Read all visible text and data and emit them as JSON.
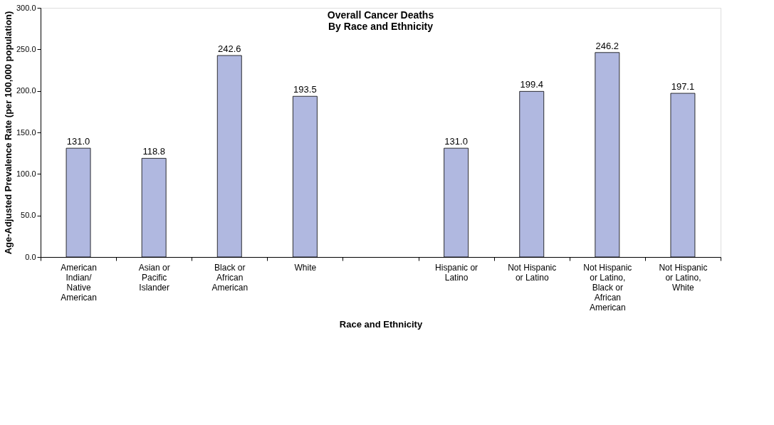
{
  "chart_data": {
    "type": "bar",
    "title": "Overall Cancer Deaths\nBy Race and Ethnicity",
    "xlabel": "Race and Ethnicity",
    "ylabel": "Age-Adjusted Prevalence Rate (per 100,000 population)",
    "categories": [
      "American Indian/Native American",
      "Asian or Pacific Islander",
      "Black or African American",
      "White",
      null,
      "Hispanic or Latino",
      "Not Hispanic or Latino",
      "Not Hispanic or Latino, Black or African American",
      "Not Hispanic or Latino, White"
    ],
    "values": [
      131.0,
      118.8,
      242.6,
      193.5,
      null,
      131.0,
      199.4,
      246.2,
      197.1
    ],
    "color": "#b0b8e0",
    "ylim": [
      0,
      300
    ],
    "yticks": [
      {
        "value": 0,
        "label": "0.0"
      },
      {
        "value": 50,
        "label": "50.0"
      },
      {
        "value": 100,
        "label": "100.0"
      },
      {
        "value": 150,
        "label": "150.0"
      },
      {
        "value": 200,
        "label": "200.0"
      },
      {
        "value": 250,
        "label": "250.0"
      },
      {
        "value": 300,
        "label": "300.0"
      }
    ],
    "value_labels": [
      "131.0",
      "118.8",
      "242.6",
      "193.5",
      null,
      "131.0",
      "199.4",
      "246.2",
      "197.1"
    ],
    "grid": false
  }
}
